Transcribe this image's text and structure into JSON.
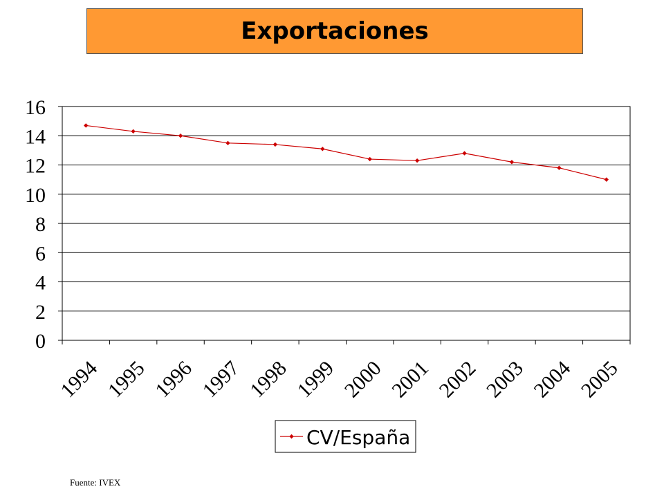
{
  "title": "Exportaciones",
  "source": "Fuente: IVEX",
  "chart_data": {
    "type": "line",
    "categories": [
      "1994",
      "1995",
      "1996",
      "1997",
      "1998",
      "1999",
      "2000",
      "2001",
      "2002",
      "2003",
      "2004",
      "2005"
    ],
    "series": [
      {
        "name": "CV/España",
        "values": [
          14.7,
          14.3,
          14.0,
          13.5,
          13.4,
          13.1,
          12.4,
          12.3,
          12.8,
          12.2,
          11.8,
          11.0
        ],
        "color": "#cc0000"
      }
    ],
    "ylim": [
      0,
      16
    ],
    "yticks": [
      "0",
      "2",
      "4",
      "6",
      "8",
      "10",
      "12",
      "14",
      "16"
    ],
    "grid": true,
    "legend": "bottom"
  }
}
